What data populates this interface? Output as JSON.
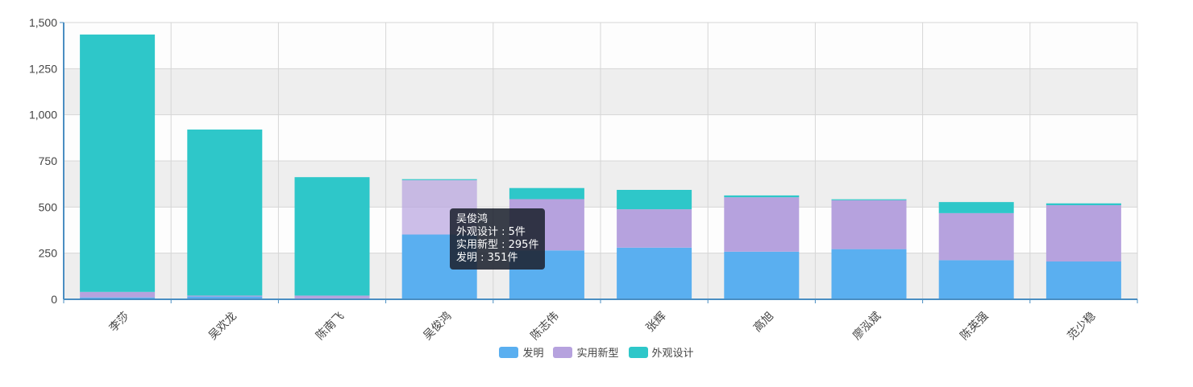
{
  "chart_data": {
    "type": "bar",
    "stacked": true,
    "categories": [
      "李莎",
      "吴欢龙",
      "陈南飞",
      "吴俊鸿",
      "陈志伟",
      "张辉",
      "高旭",
      "廖泓斌",
      "陈英强",
      "范少稳"
    ],
    "series": [
      {
        "name": "发明",
        "color": "#5aaff0",
        "values": [
          10,
          15,
          5,
          351,
          265,
          280,
          258,
          272,
          212,
          205
        ]
      },
      {
        "name": "实用新型",
        "color": "#b6a2de",
        "values": [
          30,
          5,
          15,
          295,
          278,
          208,
          295,
          265,
          255,
          305
        ]
      },
      {
        "name": "外观设计",
        "color": "#2ec7c9",
        "values": [
          1395,
          900,
          642,
          5,
          60,
          105,
          10,
          5,
          60,
          10
        ]
      }
    ],
    "y_ticks": [
      "0",
      "250",
      "500",
      "750",
      "1,000",
      "1,250",
      "1,500"
    ],
    "ylim": [
      0,
      1500
    ],
    "grid": true,
    "legend_position": "bottom-center",
    "highlighted_index": 3,
    "tooltip": {
      "title": "吴俊鸿",
      "lines": [
        "外观设计 : 5件",
        "实用新型 : 295件",
        "发明 : 351件"
      ]
    }
  }
}
